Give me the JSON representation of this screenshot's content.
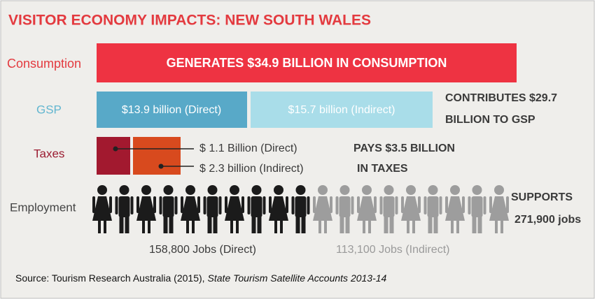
{
  "title": "VISITOR ECONOMY IMPACTS: NEW SOUTH WALES",
  "consumption": {
    "label": "Consumption",
    "bar_text": "GENERATES $34.9 BILLION IN CONSUMPTION"
  },
  "gsp": {
    "label": "GSP",
    "direct": "$13.9 billion (Direct)",
    "indirect": "$15.7 billion (Indirect)",
    "summary": [
      "CONTRIBUTES $29.7",
      "BILLION TO GSP"
    ]
  },
  "taxes": {
    "label": "Taxes",
    "direct": "$ 1.1 Billion (Direct)",
    "indirect": "$ 2.3 billion (Indirect)",
    "summary": [
      "PAYS $3.5 BILLION",
      "IN TAXES"
    ]
  },
  "employment": {
    "label": "Employment",
    "direct": "158,800 Jobs (Direct)",
    "indirect": "113,100 Jobs (Indirect)",
    "summary": [
      "SUPPORTS",
      "271,900 jobs"
    ]
  },
  "source": {
    "text": "Source: Tourism Research Australia (2015),",
    "publication": "State Tourism Satellite Accounts 2013-14"
  }
}
